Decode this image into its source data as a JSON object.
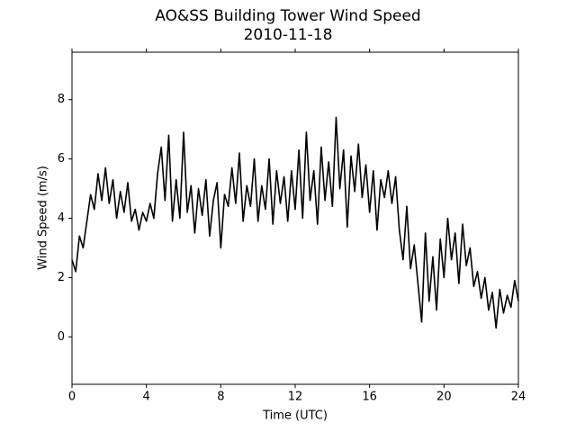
{
  "chart_data": {
    "type": "line",
    "title": "AO&SS Building Tower Wind Speed",
    "subtitle": "2010-11-18",
    "x_label": "Time (UTC)",
    "y_label": "Wind Speed (m/s)",
    "xlim": [
      0,
      24
    ],
    "xticks": [
      0,
      4,
      8,
      12,
      16,
      20,
      24
    ],
    "ylim": [
      -1.6,
      9.6
    ],
    "yticks": [
      0,
      2,
      4,
      6,
      8
    ],
    "x": [
      0,
      0.2,
      0.4,
      0.6,
      0.8,
      1.0,
      1.2,
      1.4,
      1.6,
      1.8,
      2.0,
      2.2,
      2.4,
      2.6,
      2.8,
      3.0,
      3.2,
      3.4,
      3.6,
      3.8,
      4.0,
      4.2,
      4.4,
      4.6,
      4.8,
      5.0,
      5.2,
      5.4,
      5.6,
      5.8,
      6.0,
      6.2,
      6.4,
      6.6,
      6.8,
      7.0,
      7.2,
      7.4,
      7.6,
      7.8,
      8.0,
      8.2,
      8.4,
      8.6,
      8.8,
      9.0,
      9.2,
      9.4,
      9.6,
      9.8,
      10.0,
      10.2,
      10.4,
      10.6,
      10.8,
      11.0,
      11.2,
      11.4,
      11.6,
      11.8,
      12.0,
      12.2,
      12.4,
      12.6,
      12.8,
      13.0,
      13.2,
      13.4,
      13.6,
      13.8,
      14.0,
      14.2,
      14.4,
      14.6,
      14.8,
      15.0,
      15.2,
      15.4,
      15.6,
      15.8,
      16.0,
      16.2,
      16.4,
      16.6,
      16.8,
      17.0,
      17.2,
      17.4,
      17.6,
      17.8,
      18.0,
      18.2,
      18.4,
      18.6,
      18.8,
      19.0,
      19.2,
      19.4,
      19.6,
      19.8,
      20.0,
      20.2,
      20.4,
      20.6,
      20.8,
      21.0,
      21.2,
      21.4,
      21.6,
      21.8,
      22.0,
      22.2,
      22.4,
      22.6,
      22.8,
      23.0,
      23.2,
      23.4,
      23.6,
      23.8,
      24.0
    ],
    "series": [
      {
        "color": "#000000",
        "values": [
          2.6,
          2.2,
          3.4,
          3.0,
          3.9,
          4.8,
          4.3,
          5.5,
          4.6,
          5.7,
          4.5,
          5.3,
          4.0,
          4.9,
          4.2,
          5.2,
          3.9,
          4.3,
          3.6,
          4.2,
          3.9,
          4.5,
          4.0,
          5.5,
          6.4,
          4.6,
          6.8,
          3.9,
          5.3,
          4.0,
          6.9,
          4.2,
          5.1,
          3.5,
          5.0,
          4.1,
          5.3,
          3.4,
          4.6,
          5.2,
          3.0,
          4.8,
          4.4,
          5.7,
          4.5,
          6.2,
          3.9,
          5.1,
          4.4,
          6.0,
          3.9,
          5.1,
          4.3,
          6.0,
          3.8,
          5.6,
          4.5,
          5.4,
          3.9,
          5.6,
          4.3,
          6.3,
          4.0,
          6.9,
          4.6,
          5.6,
          3.8,
          6.4,
          4.6,
          5.9,
          4.4,
          7.4,
          5.0,
          6.3,
          3.7,
          6.1,
          4.9,
          6.5,
          4.7,
          5.8,
          4.2,
          5.6,
          3.6,
          5.3,
          4.7,
          5.6,
          4.5,
          5.4,
          3.6,
          2.6,
          4.4,
          2.3,
          3.1,
          1.8,
          0.5,
          3.5,
          1.2,
          2.7,
          0.9,
          3.3,
          2.0,
          4.0,
          2.6,
          3.5,
          1.8,
          3.8,
          2.4,
          3.0,
          1.7,
          2.2,
          1.3,
          2.0,
          0.9,
          1.5,
          0.3,
          1.6,
          0.8,
          1.4,
          1.0,
          1.9,
          1.2
        ]
      }
    ]
  }
}
